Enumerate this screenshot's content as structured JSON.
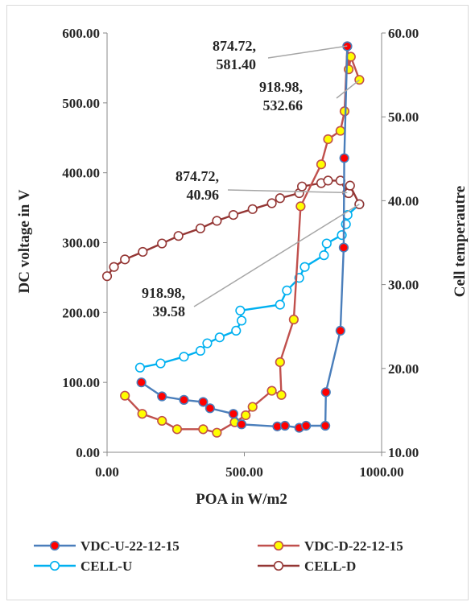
{
  "chart_data": {
    "type": "scatter",
    "title": "",
    "xlabel": "POA in W/m2",
    "ylabel": "DC voltage in V",
    "y2label": "Cell temperautre",
    "xlim": [
      0,
      1000
    ],
    "ylim": [
      0,
      600
    ],
    "y2lim": [
      10,
      60
    ],
    "x_ticks": [
      "0.00",
      "500.00",
      "1000.00"
    ],
    "y_ticks": [
      "0.00",
      "100.00",
      "200.00",
      "300.00",
      "400.00",
      "500.00",
      "600.00"
    ],
    "y2_ticks": [
      "10.00",
      "20.00",
      "30.00",
      "40.00",
      "50.00",
      "60.00"
    ],
    "grid": false,
    "legend_position": "bottom",
    "series": [
      {
        "name": "VDC-U-22-12-15",
        "axis": "left",
        "color": "#4a7ebb",
        "marker_fill": "#ff0000",
        "points": [
          [
            125,
            100
          ],
          [
            200,
            80
          ],
          [
            280,
            75
          ],
          [
            350,
            72
          ],
          [
            375,
            63
          ],
          [
            460,
            55
          ],
          [
            490,
            40
          ],
          [
            620,
            37
          ],
          [
            648,
            38
          ],
          [
            700,
            35
          ],
          [
            725,
            38
          ],
          [
            795,
            38
          ],
          [
            797,
            86
          ],
          [
            850,
            174
          ],
          [
            862,
            293
          ],
          [
            864,
            421
          ],
          [
            875,
            581
          ]
        ]
      },
      {
        "name": "VDC-D-22-12-15",
        "axis": "left",
        "color": "#c0504d",
        "marker_fill": "#ffff00",
        "points": [
          [
            65,
            81
          ],
          [
            128,
            55
          ],
          [
            200,
            45
          ],
          [
            255,
            33
          ],
          [
            350,
            33
          ],
          [
            400,
            28
          ],
          [
            465,
            43
          ],
          [
            505,
            53
          ],
          [
            530,
            65
          ],
          [
            600,
            88
          ],
          [
            635,
            82
          ],
          [
            630,
            129
          ],
          [
            680,
            190
          ],
          [
            705,
            352
          ],
          [
            780,
            412
          ],
          [
            805,
            448
          ],
          [
            850,
            460
          ],
          [
            865,
            488
          ],
          [
            875,
            581
          ],
          [
            880,
            548
          ],
          [
            888,
            566
          ],
          [
            919,
            533
          ]
        ]
      },
      {
        "name": "CELL-U",
        "axis": "right",
        "color": "#00b0f0",
        "marker_fill": "#ffffff",
        "points": [
          [
            120,
            20.1
          ],
          [
            195,
            20.6
          ],
          [
            280,
            21.4
          ],
          [
            340,
            22.1
          ],
          [
            365,
            23.0
          ],
          [
            410,
            23.7
          ],
          [
            470,
            24.5
          ],
          [
            490,
            25.7
          ],
          [
            485,
            26.9
          ],
          [
            630,
            27.6
          ],
          [
            655,
            29.3
          ],
          [
            700,
            30.8
          ],
          [
            720,
            32.1
          ],
          [
            790,
            33.5
          ],
          [
            800,
            34.9
          ],
          [
            855,
            35.9
          ],
          [
            870,
            37.2
          ],
          [
            876,
            38.3
          ],
          [
            918.98,
            39.58
          ]
        ]
      },
      {
        "name": "CELL-D",
        "axis": "right",
        "color": "#943634",
        "marker_fill": "#ffffff",
        "points": [
          [
            0,
            31.0
          ],
          [
            25,
            32.1
          ],
          [
            65,
            33.0
          ],
          [
            130,
            33.9
          ],
          [
            200,
            34.9
          ],
          [
            260,
            35.8
          ],
          [
            340,
            36.7
          ],
          [
            400,
            37.6
          ],
          [
            460,
            38.3
          ],
          [
            530,
            39.0
          ],
          [
            600,
            39.7
          ],
          [
            630,
            40.3
          ],
          [
            700,
            40.9
          ],
          [
            710,
            41.7
          ],
          [
            780,
            42.1
          ],
          [
            805,
            42.4
          ],
          [
            850,
            42.4
          ],
          [
            874.72,
            40.96
          ],
          [
            880,
            40.9
          ],
          [
            885,
            41.8
          ],
          [
            918.98,
            39.58
          ]
        ]
      }
    ],
    "annotations": [
      {
        "line1": "874.72,",
        "line2": "581.40",
        "x": 874.72,
        "y": 581.4,
        "axis": "left"
      },
      {
        "line1": "918.98,",
        "line2": "532.66",
        "x": 918.98,
        "y": 532.66,
        "axis": "left"
      },
      {
        "line1": "874.72,",
        "line2": "40.96",
        "x": 874.72,
        "y": 40.96,
        "axis": "right"
      },
      {
        "line1": "918.98,",
        "line2": "39.58",
        "x": 918.98,
        "y": 39.58,
        "axis": "right"
      }
    ]
  }
}
